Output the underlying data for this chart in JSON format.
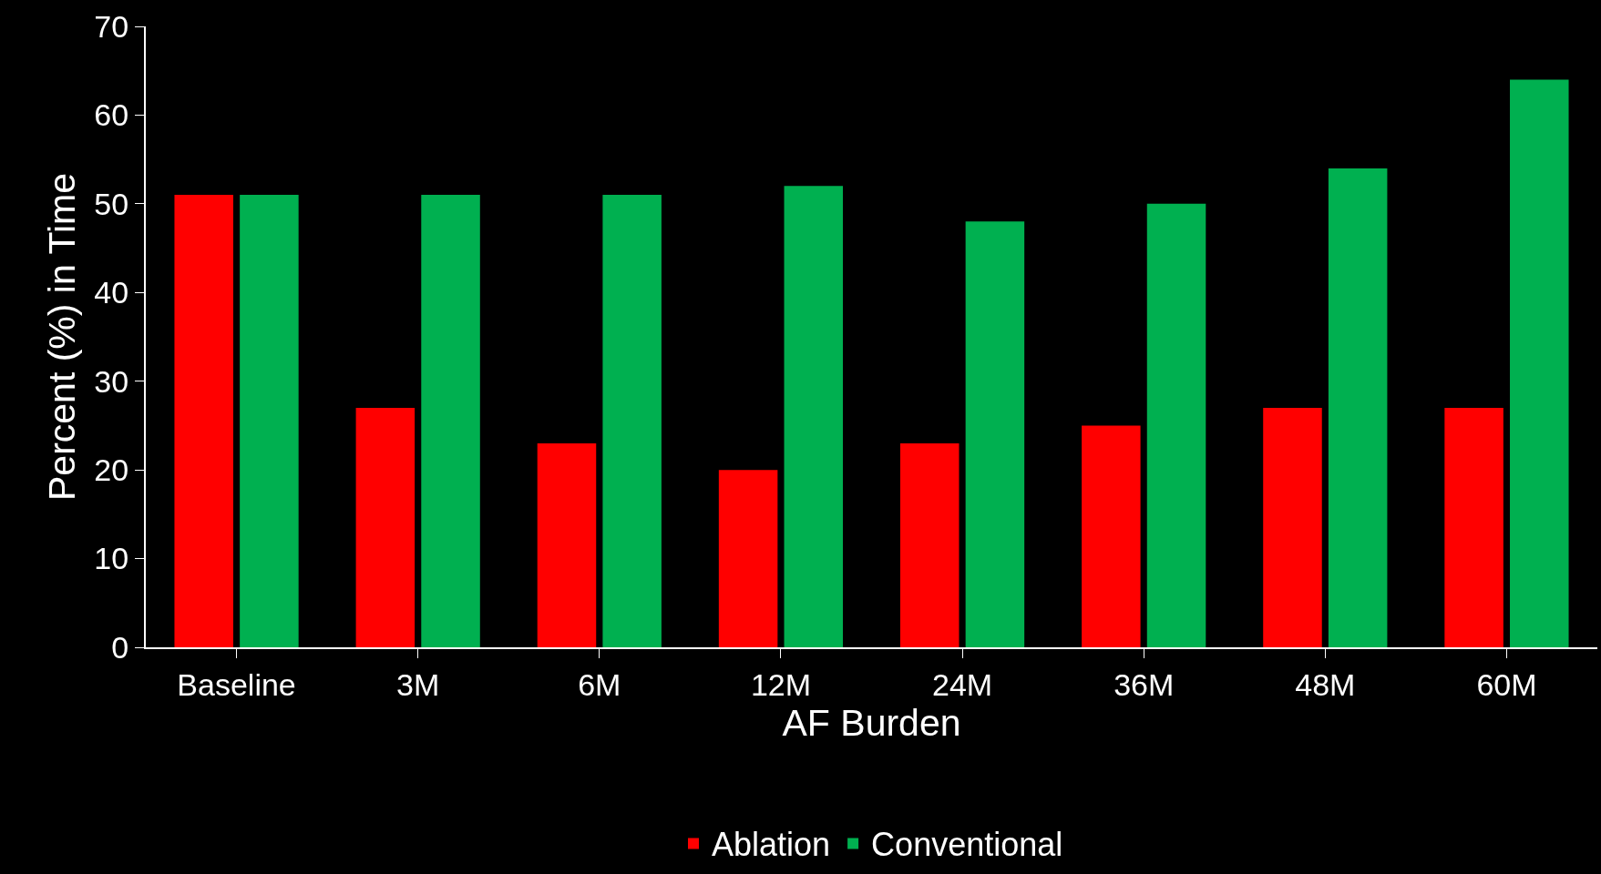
{
  "chart_data": {
    "type": "bar",
    "xlabel": "AF Burden",
    "ylabel": "Percent (%) in Time",
    "categories": [
      "Baseline",
      "3M",
      "6M",
      "12M",
      "24M",
      "36M",
      "48M",
      "60M"
    ],
    "series": [
      {
        "name": "Ablation",
        "color": "#ff0000",
        "values": [
          51,
          27,
          23,
          20,
          23,
          25,
          27,
          27
        ]
      },
      {
        "name": "Conventional",
        "color": "#00b050",
        "values": [
          51,
          51,
          51,
          52,
          48,
          50,
          54,
          64
        ]
      }
    ],
    "ylim": [
      0,
      70
    ],
    "yticks": [
      0,
      10,
      20,
      30,
      40,
      50,
      60,
      70
    ],
    "grid": false,
    "legend": "bottom"
  }
}
